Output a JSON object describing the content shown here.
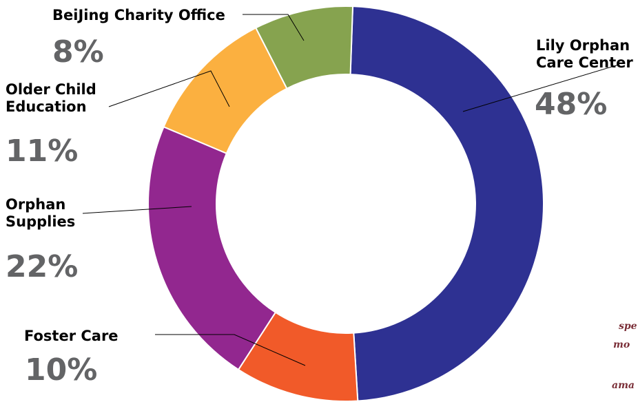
{
  "chart_data": {
    "type": "pie",
    "title": "",
    "slices": [
      {
        "name": "Lily Orphan Care Center",
        "label_lines": [
          "Lily Orphan",
          "Care Center"
        ],
        "value": 48,
        "pct_label": "48%",
        "color": "#2e3192"
      },
      {
        "name": "Foster Care",
        "label_lines": [
          "Foster Care"
        ],
        "value": 10,
        "pct_label": "10%",
        "color": "#f15a29"
      },
      {
        "name": "Orphan Supplies",
        "label_lines": [
          "Orphan",
          "Supplies"
        ],
        "value": 22,
        "pct_label": "22%",
        "color": "#92278f"
      },
      {
        "name": "Older Child Education",
        "label_lines": [
          "Older Child",
          "Education"
        ],
        "value": 11,
        "pct_label": "11%",
        "color": "#fbb040"
      },
      {
        "name": "BeiJing Charity Office",
        "label_lines": [
          "BeiJing Charity Office"
        ],
        "value": 8,
        "pct_label": "8%",
        "color": "#86a34f"
      }
    ]
  },
  "side_text": [
    "spe",
    "mo",
    "ama"
  ],
  "colors": {
    "percent_text": "#636466",
    "label_text": "#000000",
    "side_text": "#7a2e37"
  }
}
